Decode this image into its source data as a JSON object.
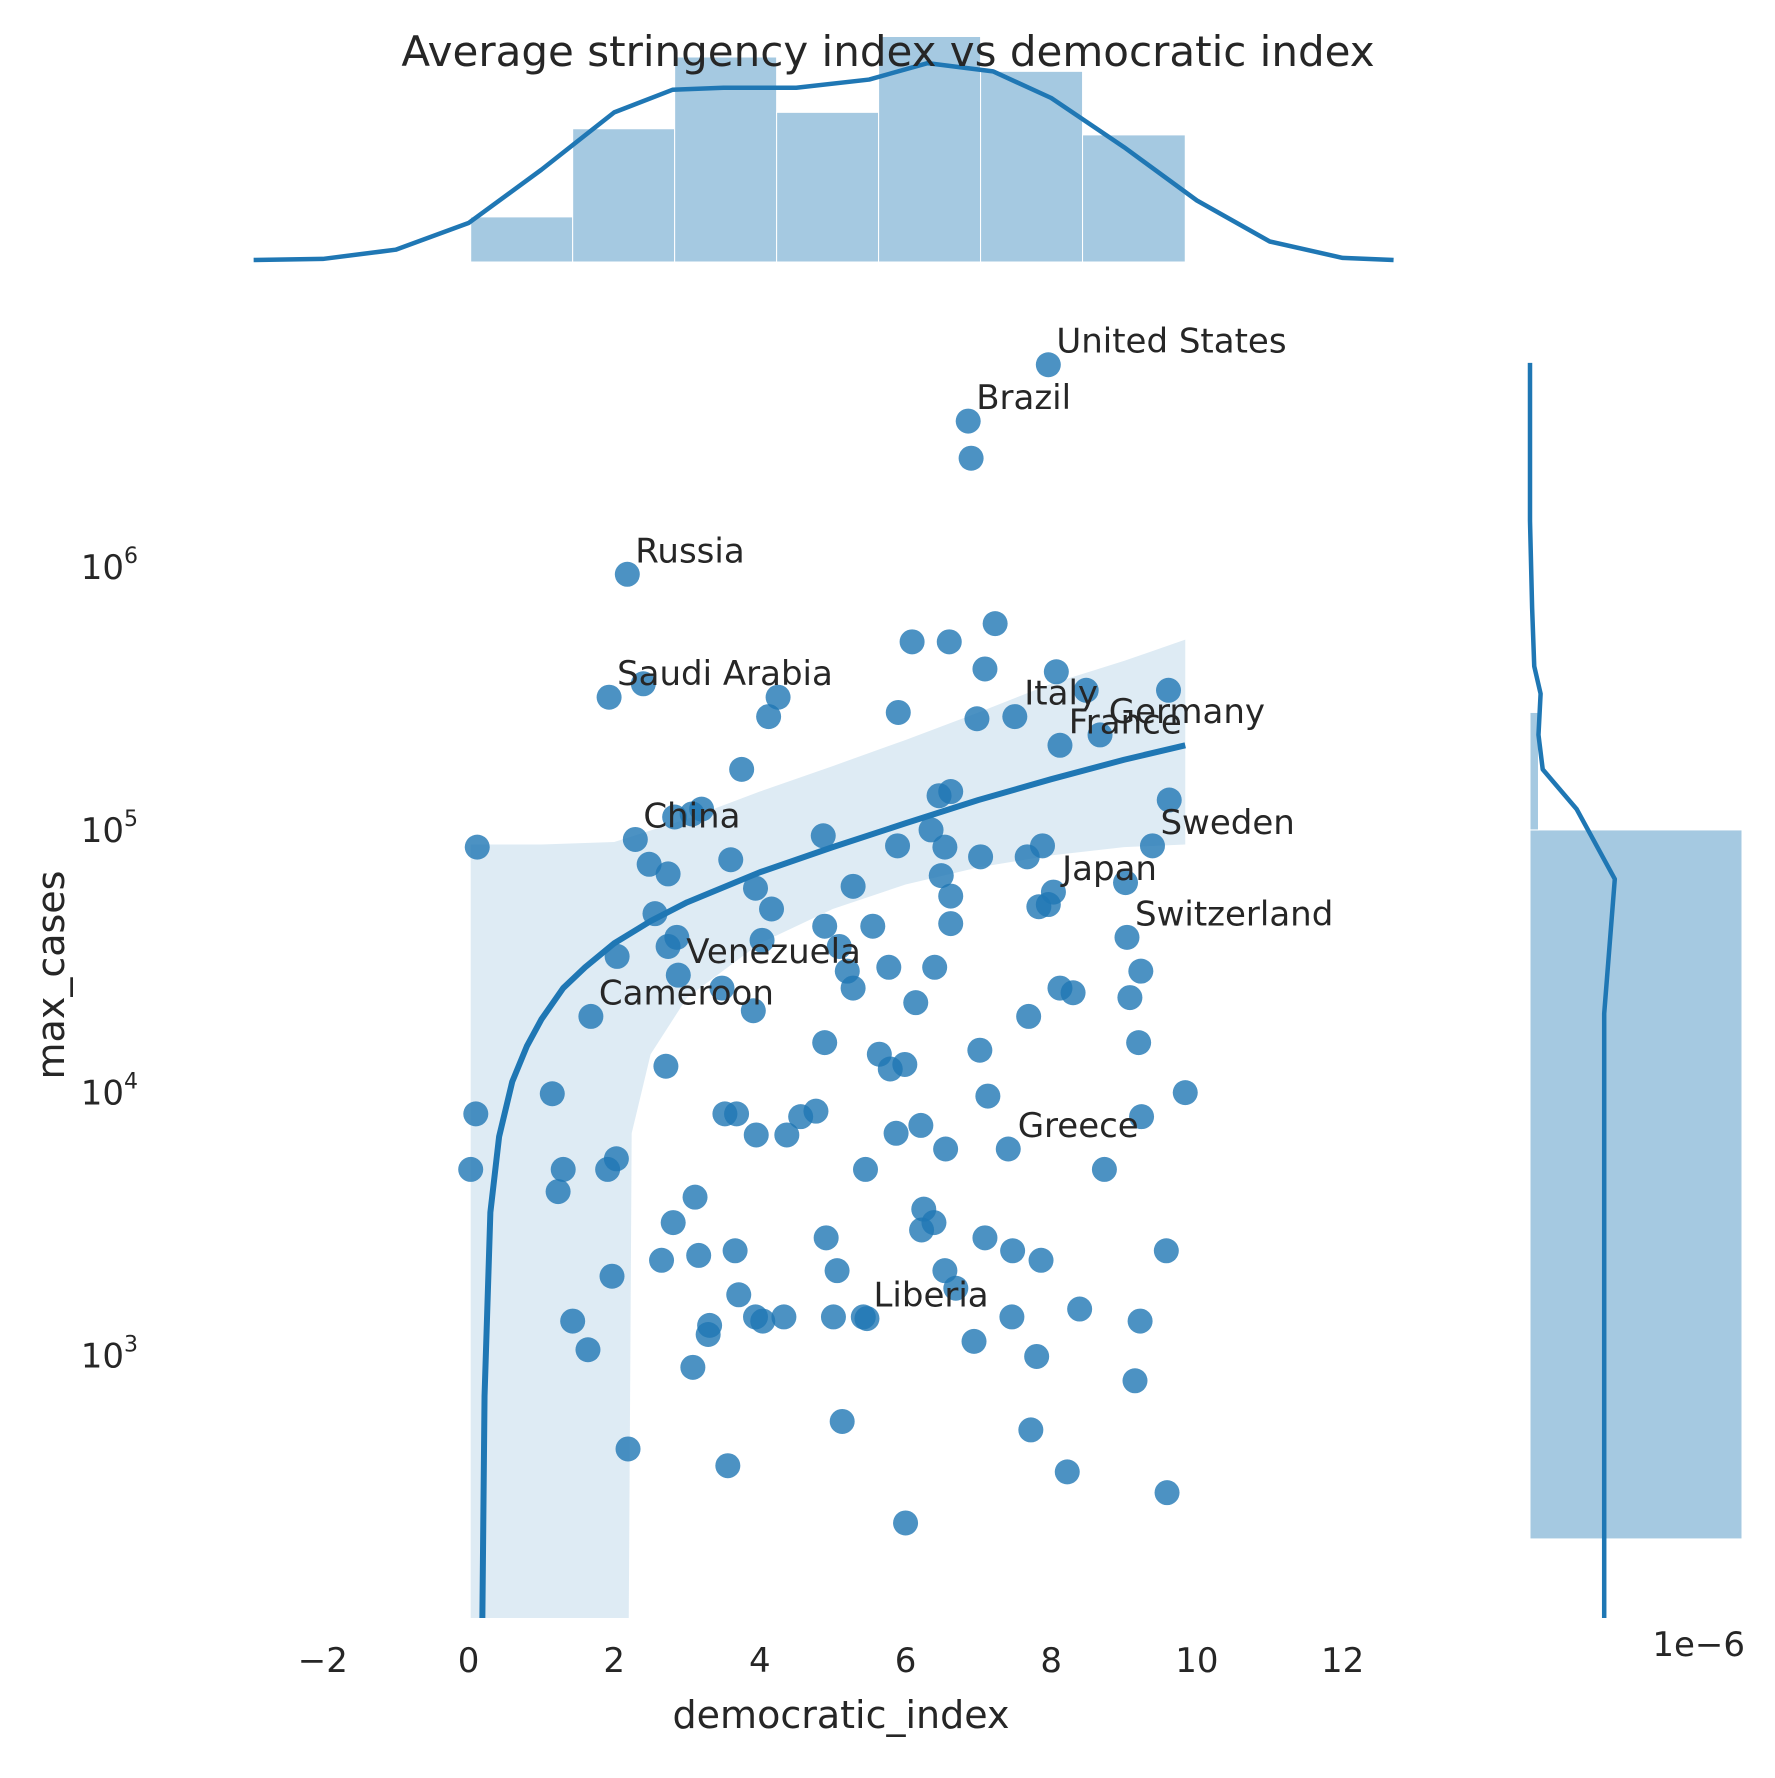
{
  "chart_data": {
    "type": "scatter",
    "title": "Average stringency index vs democratic index",
    "xlabel": "democratic_index",
    "ylabel": "max_cases",
    "xlim": [
      -3.0,
      13.2
    ],
    "ylim": [
      100,
      8000000
    ],
    "y_scale": "log",
    "x_ticks": [
      "−2",
      "0",
      "2",
      "4",
      "6",
      "8",
      "10",
      "12"
    ],
    "x_tick_values": [
      -2,
      0,
      2,
      4,
      6,
      8,
      10,
      12
    ],
    "y_ticks": [
      {
        "base": "10",
        "exp": "3",
        "value": 1000
      },
      {
        "base": "10",
        "exp": "4",
        "value": 10000
      },
      {
        "base": "10",
        "exp": "5",
        "value": 100000
      },
      {
        "base": "10",
        "exp": "6",
        "value": 1000000
      }
    ],
    "right_marginal_offset_label": "1e−6",
    "color": "#1f77b4",
    "points": [
      [
        7.96,
        5900000
      ],
      [
        6.86,
        3600000
      ],
      [
        6.9,
        2600000
      ],
      [
        2.18,
        940000
      ],
      [
        1.93,
        320000
      ],
      [
        2.4,
        360000
      ],
      [
        4.25,
        320000
      ],
      [
        4.12,
        270000
      ],
      [
        3.75,
        170000
      ],
      [
        3.2,
        120000
      ],
      [
        3.07,
        115000
      ],
      [
        2.83,
        112000
      ],
      [
        2.29,
        92000
      ],
      [
        2.48,
        74000
      ],
      [
        2.74,
        68000
      ],
      [
        3.6,
        77000
      ],
      [
        0.12,
        86000
      ],
      [
        3.94,
        60000
      ],
      [
        4.16,
        50000
      ],
      [
        2.56,
        48000
      ],
      [
        2.86,
        39000
      ],
      [
        2.74,
        36000
      ],
      [
        4.03,
        38000
      ],
      [
        2.04,
        33000
      ],
      [
        2.88,
        28000
      ],
      [
        3.48,
        25000
      ],
      [
        3.91,
        20500
      ],
      [
        1.68,
        19500
      ],
      [
        2.71,
        12600
      ],
      [
        1.15,
        9900
      ],
      [
        0.1,
        8300
      ],
      [
        0.03,
        5100
      ],
      [
        1.3,
        5100
      ],
      [
        1.23,
        4200
      ],
      [
        1.91,
        5100
      ],
      [
        2.03,
        5600
      ],
      [
        3.52,
        8300
      ],
      [
        3.68,
        8300
      ],
      [
        3.95,
        6900
      ],
      [
        4.37,
        6900
      ],
      [
        4.56,
        8100
      ],
      [
        4.77,
        8500
      ],
      [
        6.09,
        520000
      ],
      [
        6.6,
        520000
      ],
      [
        7.23,
        610000
      ],
      [
        7.09,
        410000
      ],
      [
        8.07,
        400000
      ],
      [
        8.48,
        340000
      ],
      [
        9.61,
        340000
      ],
      [
        5.9,
        280000
      ],
      [
        6.98,
        265000
      ],
      [
        7.5,
        270000
      ],
      [
        8.12,
        210000
      ],
      [
        8.67,
        230000
      ],
      [
        6.62,
        140000
      ],
      [
        6.46,
        135000
      ],
      [
        6.35,
        100000
      ],
      [
        6.54,
        86000
      ],
      [
        5.89,
        87000
      ],
      [
        4.87,
        95000
      ],
      [
        7.03,
        79000
      ],
      [
        7.67,
        79000
      ],
      [
        7.88,
        87000
      ],
      [
        9.39,
        87000
      ],
      [
        9.62,
        130000
      ],
      [
        6.49,
        67000
      ],
      [
        6.62,
        56000
      ],
      [
        5.28,
        61000
      ],
      [
        9.02,
        63000
      ],
      [
        8.03,
        58000
      ],
      [
        7.83,
        51000
      ],
      [
        7.96,
        52000
      ],
      [
        4.89,
        43000
      ],
      [
        5.55,
        43000
      ],
      [
        6.62,
        44000
      ],
      [
        9.04,
        39000
      ],
      [
        5.09,
        36000
      ],
      [
        5.2,
        29000
      ],
      [
        5.77,
        30000
      ],
      [
        6.4,
        30000
      ],
      [
        9.23,
        29000
      ],
      [
        5.28,
        25000
      ],
      [
        6.14,
        22000
      ],
      [
        8.12,
        25000
      ],
      [
        8.3,
        24000
      ],
      [
        7.69,
        19500
      ],
      [
        9.08,
        23000
      ],
      [
        4.89,
        15500
      ],
      [
        5.64,
        14000
      ],
      [
        5.79,
        12300
      ],
      [
        5.99,
        12800
      ],
      [
        7.02,
        14500
      ],
      [
        9.2,
        15500
      ],
      [
        7.13,
        9700
      ],
      [
        9.24,
        8100
      ],
      [
        9.84,
        10000
      ],
      [
        5.87,
        7000
      ],
      [
        6.21,
        7500
      ],
      [
        6.55,
        6100
      ],
      [
        7.41,
        6100
      ],
      [
        8.73,
        5100
      ],
      [
        5.45,
        5100
      ],
      [
        3.11,
        4000
      ],
      [
        2.81,
        3200
      ],
      [
        4.91,
        2800
      ],
      [
        6.25,
        3600
      ],
      [
        6.39,
        3200
      ],
      [
        6.22,
        3000
      ],
      [
        7.09,
        2800
      ],
      [
        7.47,
        2500
      ],
      [
        7.86,
        2300
      ],
      [
        9.58,
        2500
      ],
      [
        3.16,
        2400
      ],
      [
        3.66,
        2500
      ],
      [
        2.65,
        2300
      ],
      [
        5.06,
        2100
      ],
      [
        6.54,
        2100
      ],
      [
        6.69,
        1800
      ],
      [
        1.97,
        2000
      ],
      [
        3.71,
        1700
      ],
      [
        3.94,
        1400
      ],
      [
        4.04,
        1350
      ],
      [
        4.33,
        1400
      ],
      [
        5.01,
        1400
      ],
      [
        5.42,
        1400
      ],
      [
        5.47,
        1380
      ],
      [
        7.46,
        1400
      ],
      [
        8.39,
        1500
      ],
      [
        9.22,
        1350
      ],
      [
        3.31,
        1300
      ],
      [
        3.29,
        1200
      ],
      [
        1.43,
        1350
      ],
      [
        1.64,
        1050
      ],
      [
        3.08,
        900
      ],
      [
        6.94,
        1130
      ],
      [
        7.8,
        990
      ],
      [
        9.15,
        800
      ],
      [
        5.13,
        560
      ],
      [
        7.72,
        520
      ],
      [
        2.19,
        440
      ],
      [
        3.56,
        380
      ],
      [
        8.22,
        360
      ],
      [
        9.59,
        300
      ],
      [
        6.0,
        230
      ]
    ],
    "labels": [
      {
        "text": "United States",
        "x": 7.96,
        "y": 5900000
      },
      {
        "text": "Brazil",
        "x": 6.86,
        "y": 3600000
      },
      {
        "text": "Russia",
        "x": 2.18,
        "y": 940000
      },
      {
        "text": "Saudi Arabia",
        "x": 1.93,
        "y": 320000
      },
      {
        "text": "Italy",
        "x": 7.52,
        "y": 270000
      },
      {
        "text": "Germany",
        "x": 8.68,
        "y": 230000
      },
      {
        "text": "France",
        "x": 8.13,
        "y": 210000
      },
      {
        "text": "China",
        "x": 2.29,
        "y": 92000
      },
      {
        "text": "Sweden",
        "x": 9.39,
        "y": 87000
      },
      {
        "text": "Japan",
        "x": 8.04,
        "y": 58000
      },
      {
        "text": "Switzerland",
        "x": 9.04,
        "y": 39000
      },
      {
        "text": "Venezuela",
        "x": 2.88,
        "y": 28000
      },
      {
        "text": "Cameroon",
        "x": 1.68,
        "y": 19500
      },
      {
        "text": "Greece",
        "x": 7.43,
        "y": 6100
      },
      {
        "text": "Liberia",
        "x": 5.45,
        "y": 1380
      }
    ],
    "regression_fit": [
      [
        0.19,
        100
      ],
      [
        0.22,
        700
      ],
      [
        0.3,
        3500
      ],
      [
        0.42,
        6800
      ],
      [
        0.6,
        11000
      ],
      [
        0.8,
        15000
      ],
      [
        1.0,
        19000
      ],
      [
        1.3,
        25000
      ],
      [
        1.6,
        30000
      ],
      [
        2.0,
        37000
      ],
      [
        2.5,
        45000
      ],
      [
        3.0,
        53000
      ],
      [
        4.0,
        69000
      ],
      [
        5.0,
        86000
      ],
      [
        6.0,
        106000
      ],
      [
        7.0,
        130000
      ],
      [
        8.0,
        156000
      ],
      [
        9.0,
        185000
      ],
      [
        9.84,
        210000
      ]
    ],
    "confidence_band_upper": [
      [
        0.03,
        88000
      ],
      [
        1.0,
        88000
      ],
      [
        2.0,
        90000
      ],
      [
        3.0,
        110000
      ],
      [
        4.0,
        140000
      ],
      [
        5.0,
        175000
      ],
      [
        6.0,
        220000
      ],
      [
        7.0,
        280000
      ],
      [
        8.0,
        360000
      ],
      [
        9.0,
        440000
      ],
      [
        9.84,
        530000
      ]
    ],
    "confidence_band_lower": [
      [
        0.03,
        100
      ],
      [
        2.2,
        100
      ],
      [
        2.24,
        7000
      ],
      [
        2.5,
        14000
      ],
      [
        3.0,
        23000
      ],
      [
        4.0,
        37000
      ],
      [
        5.0,
        50000
      ],
      [
        6.0,
        62000
      ],
      [
        7.0,
        72000
      ],
      [
        8.0,
        80000
      ],
      [
        9.0,
        86000
      ],
      [
        9.84,
        88000
      ]
    ],
    "x_marginal_hist": {
      "bin_edges": [
        0.03,
        1.43,
        2.83,
        4.23,
        5.63,
        7.03,
        8.43,
        9.84
      ],
      "heights": [
        0.22,
        0.65,
        1.0,
        0.73,
        1.1,
        0.93,
        0.62
      ]
    },
    "x_marginal_kde": [
      [
        -2.95,
        0.01
      ],
      [
        -2.0,
        0.015
      ],
      [
        -1.0,
        0.06
      ],
      [
        0.0,
        0.19
      ],
      [
        1.0,
        0.45
      ],
      [
        2.0,
        0.73
      ],
      [
        2.8,
        0.84
      ],
      [
        3.5,
        0.85
      ],
      [
        4.5,
        0.85
      ],
      [
        5.5,
        0.89
      ],
      [
        6.3,
        0.97
      ],
      [
        7.2,
        0.93
      ],
      [
        8.0,
        0.8
      ],
      [
        9.0,
        0.56
      ],
      [
        10.0,
        0.3
      ],
      [
        11.0,
        0.1
      ],
      [
        12.0,
        0.02
      ],
      [
        12.7,
        0.01
      ]
    ],
    "y_marginal_hist": {
      "bins": [
        {
          "y_low": 200,
          "y_high": 100000,
          "height": 1.0
        },
        {
          "y_low": 100000,
          "y_high": 280000,
          "height": 0.04
        }
      ]
    },
    "y_marginal_kde": [
      [
        100,
        0.35
      ],
      [
        20000,
        0.35
      ],
      [
        65000,
        0.4
      ],
      [
        120000,
        0.22
      ],
      [
        170000,
        0.06
      ],
      [
        230000,
        0.04
      ],
      [
        330000,
        0.05
      ],
      [
        420000,
        0.02
      ],
      [
        700000,
        0.01
      ],
      [
        1500000,
        0.0
      ],
      [
        6000000,
        0.0
      ]
    ]
  }
}
